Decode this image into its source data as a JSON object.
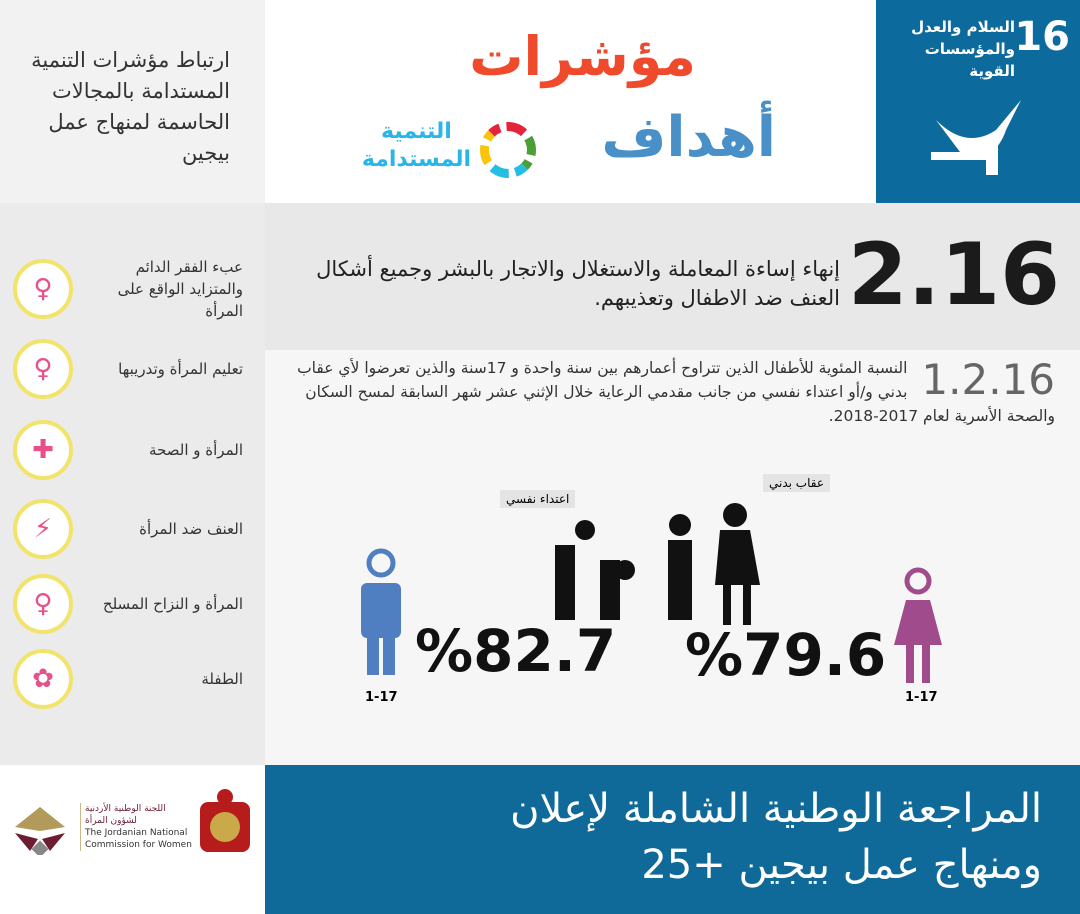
{
  "top_left": {
    "text": "ارتباط مؤشرات التنمية المستدامة بالمجالات الحاسمة لمنهاج عمل بيجين"
  },
  "title": {
    "line1": "مؤشرات",
    "line2": "أهداف",
    "sdg_line1": "التنمية",
    "sdg_line2": "المستدامة"
  },
  "goal": {
    "number": "16",
    "label": "السلام والعدل والمؤسسات القوية",
    "icon": "dove-gavel-icon",
    "color": "#0d6a9c"
  },
  "sidebar": {
    "items": [
      {
        "label": "عبء الفقر الدائم والمتزايد الواقع على المرأة",
        "icon": "woman-poverty-icon"
      },
      {
        "label": "تعليم المرأة وتدريبها",
        "icon": "woman-book-icon"
      },
      {
        "label": "المرأة و الصحة",
        "icon": "woman-health-icon"
      },
      {
        "label": "العنف ضد المرأة",
        "icon": "violence-icon"
      },
      {
        "label": "المرأة و النزاح المسلح",
        "icon": "woman-armed-conflict-icon"
      },
      {
        "label": "الطفلة",
        "icon": "girl-child-icon"
      }
    ]
  },
  "target": {
    "number": "2.16",
    "text": "إنهاء إساءة المعاملة والاستغلال والاتجار بالبشر وجميع أشكال العنف ضد الاطفال وتعذيبهم."
  },
  "indicator": {
    "number": "1.2.16",
    "text": "النسبة المئوية للأطفال الذين تتراوح أعمارهم بين سنة واحدة و 17سنة والذين تعرضوا لأي عقاب بدني و/أو اعتداء نفسي من جانب مقدمي الرعاية خلال الإثني عشر شهر السابقة لمسح السكان والصحة الأسرية لعام 2017-2018."
  },
  "labels": {
    "psych": "اعتداء نفسي",
    "physical": "عقاب بدني"
  },
  "male": {
    "value": "%82.7",
    "age": "1-17",
    "color": "#4f7fc0"
  },
  "female": {
    "value": "%79.6",
    "age": "1-17",
    "color": "#a04b8c"
  },
  "bottom": {
    "line1": "المراجعة الوطنية الشاملة لإعلان",
    "line2": "ومنهاج عمل بيجين +25"
  },
  "logo": {
    "ar1": "اللجنة الوطنية الأردنية",
    "ar2": "لشؤون المرأة",
    "en1": "The Jordanian National",
    "en2": "Commission for Women"
  }
}
